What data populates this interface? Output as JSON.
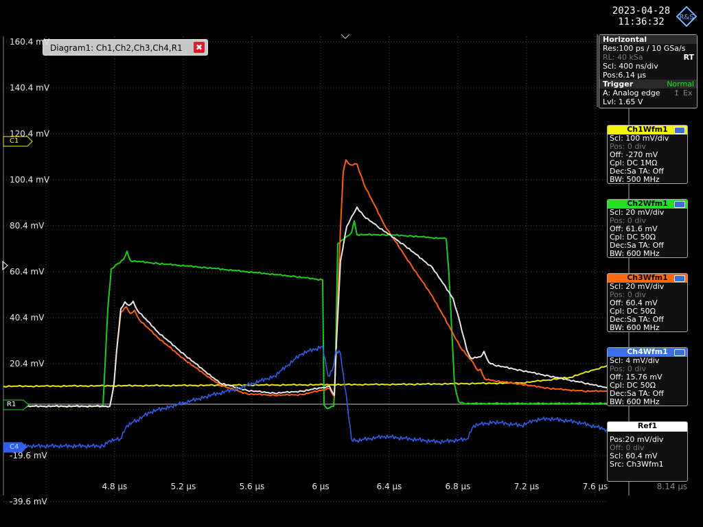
{
  "header": {
    "date": "2023-04-28",
    "time": "11:36:32",
    "logo_text": "R&S"
  },
  "diagram": {
    "label": "Diagram1: Ch1,Ch2,Ch3,Ch4,R1",
    "close_symbol": "✖"
  },
  "yaxis": {
    "labels": [
      "160.4 mV",
      "140.4 mV",
      "120.4 mV",
      "100.4 mV",
      "80.4 mV",
      "60.4 mV",
      "40.4 mV",
      "20.4 mV",
      "",
      "-19.6 mV",
      "-39.6 mV"
    ]
  },
  "xaxis": {
    "labels": [
      "4.8 µs",
      "5.2 µs",
      "5.6 µs",
      "6 µs",
      "6.4 µs",
      "6.8 µs",
      "7.2 µs",
      "7.6 µs"
    ],
    "overflow_label": "8.14 µs"
  },
  "markers": {
    "c1": "C1",
    "r1": "R1",
    "c4": "C4"
  },
  "horizontal": {
    "title": "Horizontal",
    "res": "Res:100 ps / 10 GSa/s",
    "rl": "RL: 40 kSa",
    "rt": "RT",
    "scl": "Scl: 400 ns/div",
    "pos": "Pos:6.14 µs"
  },
  "trigger": {
    "title": "Trigger",
    "mode": "Normal",
    "source": "A:  Analog edge",
    "ext": "Ex",
    "lvl": "Lvl: 1.65 V"
  },
  "channels": [
    {
      "name": "Ch1Wfm1",
      "color": "#f5f50a",
      "rows": [
        "Scl: 100 mV/div",
        "Pos: 0 div",
        "Off: -270 mV",
        "Cpl: DC 1MΩ",
        "Dec:Sa    TA: Off",
        "BW: 500 MHz"
      ]
    },
    {
      "name": "Ch2Wfm1",
      "color": "#22e022",
      "rows": [
        "Scl: 20 mV/div",
        "Pos: 0 div",
        "Off: 61.6 mV",
        "Cpl: DC 50Ω",
        "Dec:Sa    TA: Off",
        "BW: 600 MHz"
      ]
    },
    {
      "name": "Ch3Wfm1",
      "color": "#ff6a10",
      "rows": [
        "Scl: 20 mV/div",
        "Pos: 0 div",
        "Off: 60.4 mV",
        "Cpl: DC 50Ω",
        "Dec:Sa    TA: Off",
        "BW: 600 MHz"
      ]
    },
    {
      "name": "Ch4Wfm1",
      "color": "#3a6ff0",
      "rows": [
        "Scl: 4 mV/div",
        "Pos: 0 div",
        "Off: 15.76 mV",
        "Cpl: DC 50Ω",
        "Dec:Sa    TA: Off",
        "BW: 600 MHz"
      ]
    },
    {
      "name": "Ref1",
      "color": "#ffffff",
      "rows": [
        "Pos:20 mV/div",
        "Off: 0 div",
        "Scl: 60.4 mV",
        "Src: Ch3Wfm1"
      ]
    }
  ],
  "traces": {
    "ch1_color": "#e8e80a",
    "ch2_color": "#18d018",
    "ch3_color": "#ff6010",
    "ch4_color": "#2f5ee8",
    "ref1_color": "#e8e8e8"
  }
}
